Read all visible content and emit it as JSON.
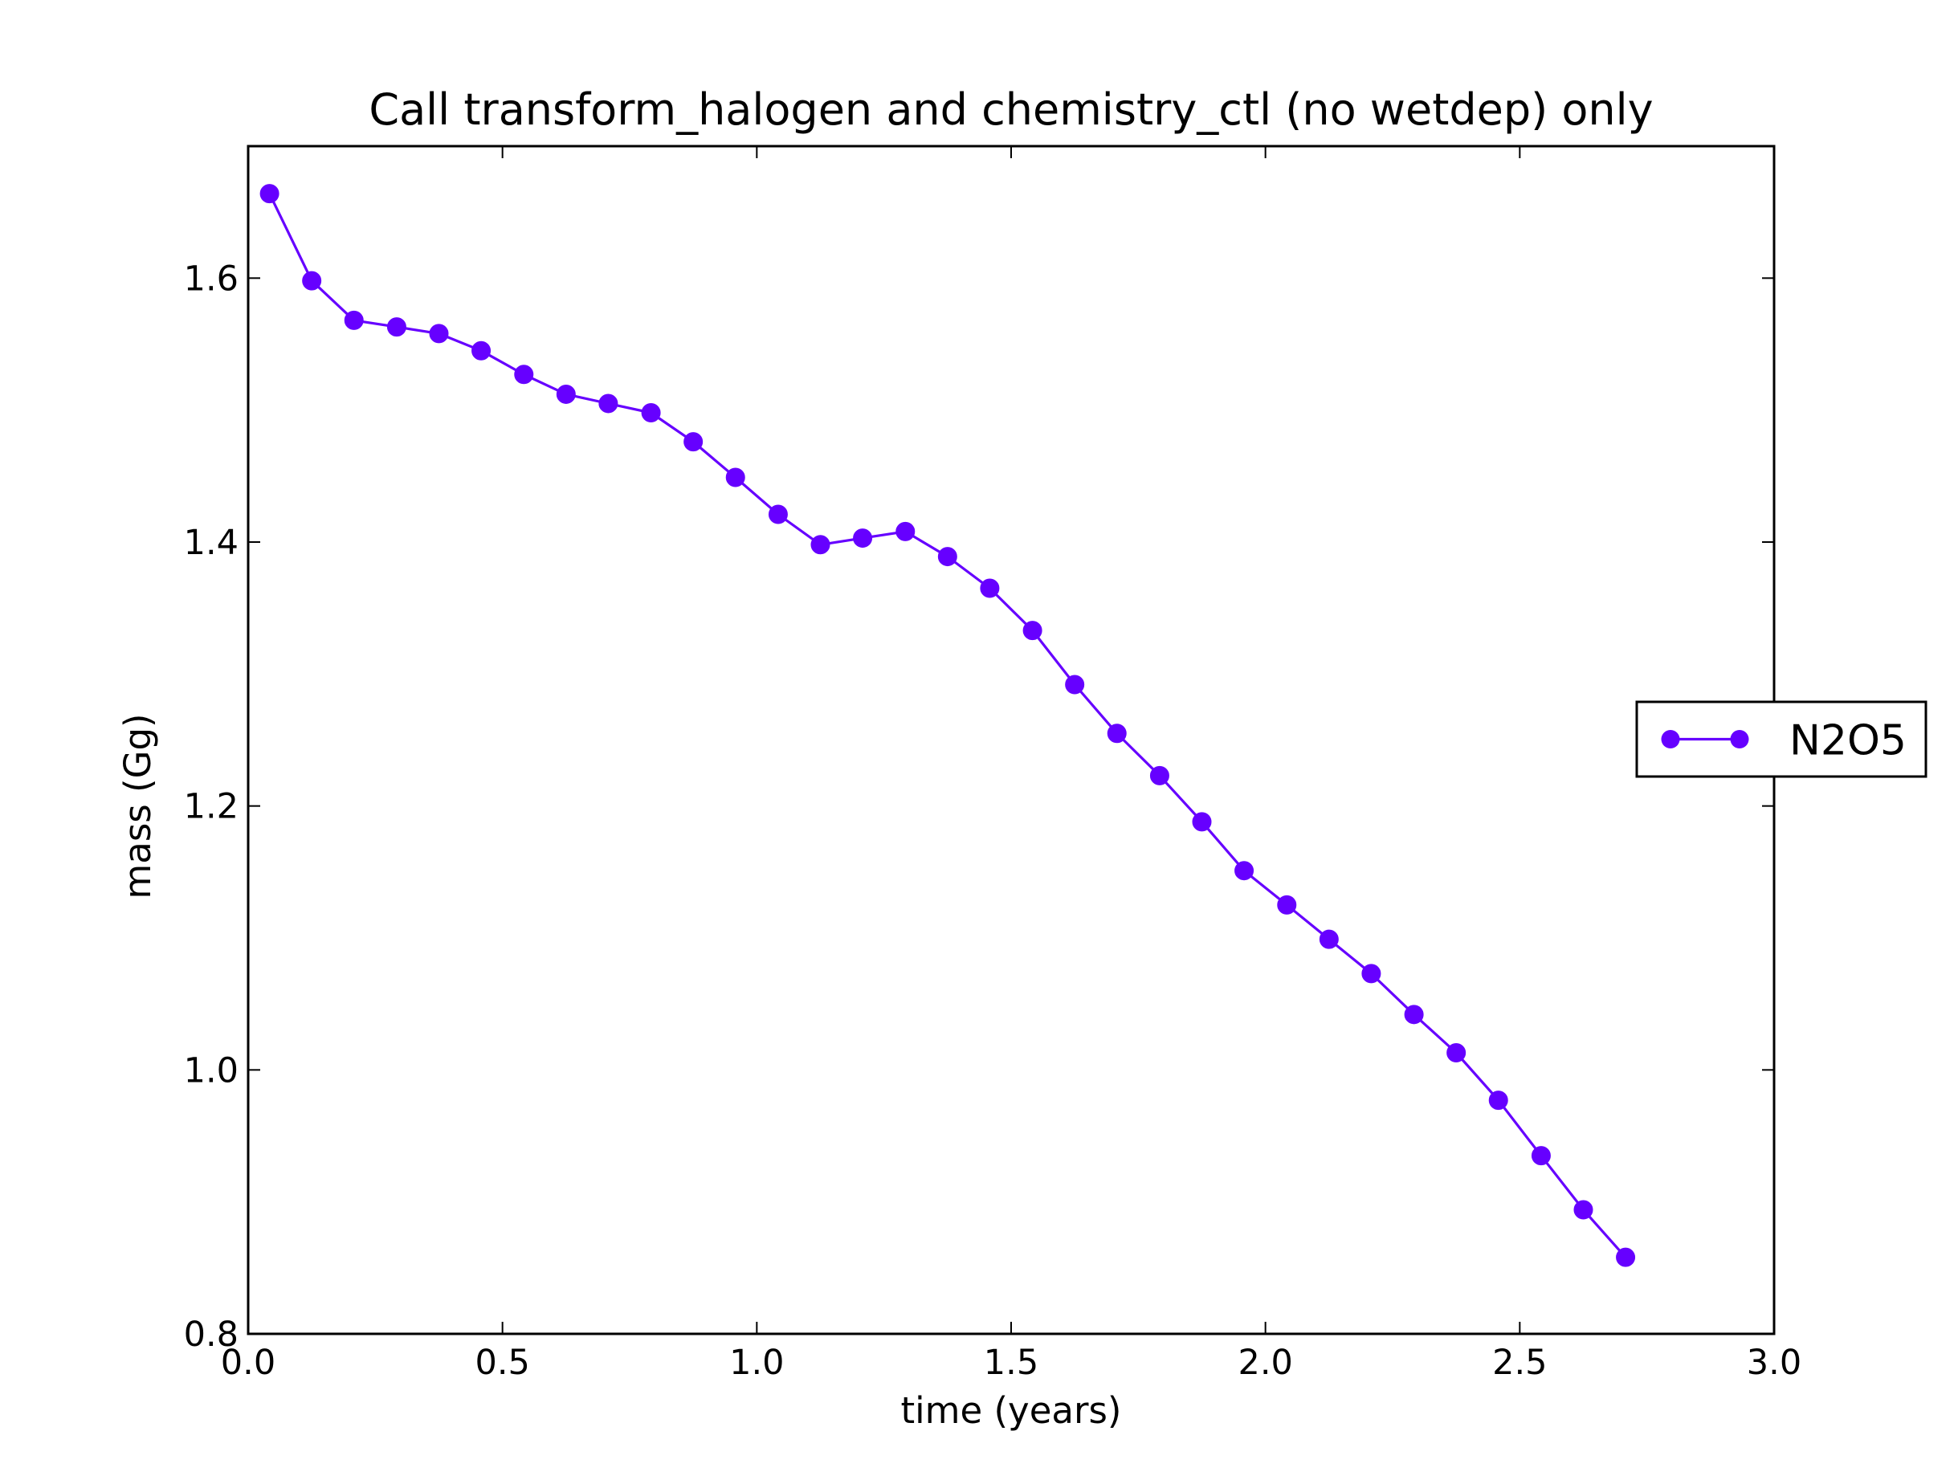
{
  "chart_data": {
    "type": "line",
    "title": "Call transform_halogen and chemistry_ctl (no wetdep) only",
    "xlabel": "time (years)",
    "ylabel": "mass (Gg)",
    "xlim": [
      0.0,
      3.0
    ],
    "ylim": [
      0.8,
      1.7
    ],
    "x_ticks": [
      "0.0",
      "0.5",
      "1.0",
      "1.5",
      "2.0",
      "2.5",
      "3.0"
    ],
    "y_ticks": [
      "0.8",
      "1.0",
      "1.2",
      "1.4",
      "1.6"
    ],
    "grid": false,
    "legend_position": "right-outside",
    "series": [
      {
        "name": "N2O5",
        "color": "#6600ff",
        "marker": "circle",
        "x": [
          0.042,
          0.125,
          0.208,
          0.292,
          0.375,
          0.458,
          0.542,
          0.625,
          0.708,
          0.792,
          0.875,
          0.958,
          1.042,
          1.125,
          1.208,
          1.292,
          1.375,
          1.458,
          1.542,
          1.625,
          1.708,
          1.792,
          1.875,
          1.958,
          2.042,
          2.125,
          2.208,
          2.292,
          2.375,
          2.458,
          2.542,
          2.625,
          2.708
        ],
        "values": [
          1.664,
          1.598,
          1.568,
          1.563,
          1.558,
          1.545,
          1.527,
          1.512,
          1.505,
          1.498,
          1.476,
          1.449,
          1.421,
          1.398,
          1.403,
          1.408,
          1.389,
          1.365,
          1.333,
          1.292,
          1.255,
          1.223,
          1.188,
          1.151,
          1.125,
          1.099,
          1.073,
          1.042,
          1.013,
          0.977,
          0.935,
          0.894,
          0.858
        ]
      }
    ]
  }
}
